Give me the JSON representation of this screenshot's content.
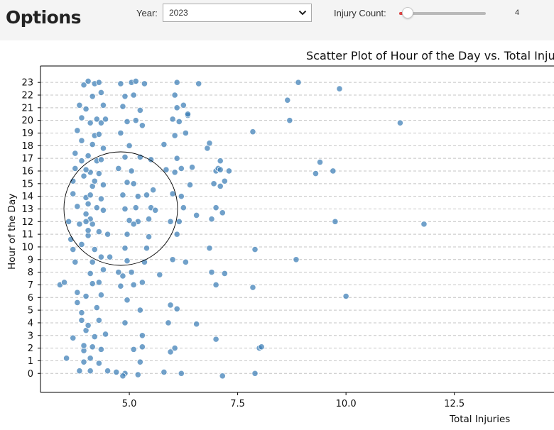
{
  "app": {
    "title": "Options"
  },
  "controls": {
    "year_label": "Year:",
    "year_value": "2023",
    "injury_label": "Injury Count:",
    "injury_value": "4",
    "injury_slider_fraction": 0.1,
    "accent_color": "#e04646"
  },
  "chart_data": {
    "type": "scatter",
    "title": "Scatter Plot of Hour of the Day vs. Total Injuries",
    "xlabel": "Total Injuries",
    "ylabel": "Hour of the Day",
    "xlim": [
      2.95,
      14.8
    ],
    "ylim": [
      -1.5,
      24.3
    ],
    "x_ticks": [
      "5.0",
      "7.5",
      "10.0",
      "12.5"
    ],
    "y_ticks": [
      "0",
      "1",
      "2",
      "3",
      "4",
      "5",
      "6",
      "7",
      "8",
      "9",
      "10",
      "11",
      "12",
      "13",
      "14",
      "15",
      "16",
      "17",
      "18",
      "19",
      "20",
      "21",
      "22",
      "23"
    ],
    "grid": "horizontal dashed",
    "point_color": "#3a7db6",
    "points": [
      [
        3.6,
        12
      ],
      [
        3.4,
        7
      ],
      [
        3.5,
        7.2
      ],
      [
        3.55,
        1.2
      ],
      [
        3.7,
        2.8
      ],
      [
        3.65,
        10.6
      ],
      [
        3.75,
        8.8
      ],
      [
        3.8,
        5.6
      ],
      [
        3.8,
        6.4
      ],
      [
        3.7,
        9.8
      ],
      [
        3.9,
        4.2
      ],
      [
        3.9,
        4.8
      ],
      [
        3.85,
        0.2
      ],
      [
        3.95,
        1.8
      ],
      [
        4.0,
        3.4
      ],
      [
        3.9,
        18.4
      ],
      [
        3.8,
        19.2
      ],
      [
        3.75,
        17.4
      ],
      [
        3.7,
        15.2
      ],
      [
        3.7,
        14.2
      ],
      [
        3.85,
        21.2
      ],
      [
        3.95,
        22.8
      ],
      [
        4.05,
        23.1
      ],
      [
        3.9,
        20.2
      ],
      [
        3.8,
        13.2
      ],
      [
        3.85,
        11.8
      ],
      [
        3.75,
        16.2
      ],
      [
        3.9,
        16.8
      ],
      [
        4.0,
        12.6
      ],
      [
        3.9,
        10.2
      ],
      [
        4.1,
        0.2
      ],
      [
        4.1,
        1.2
      ],
      [
        4.15,
        2.1
      ],
      [
        4.2,
        2.9
      ],
      [
        4.05,
        3.8
      ],
      [
        4.25,
        5.2
      ],
      [
        4.0,
        6.1
      ],
      [
        4.15,
        7.1
      ],
      [
        4.1,
        7.9
      ],
      [
        4.15,
        8.8
      ],
      [
        4.2,
        9.8
      ],
      [
        4.05,
        10.9
      ],
      [
        4.15,
        11.8
      ],
      [
        4.1,
        12.2
      ],
      [
        4.25,
        13.1
      ],
      [
        4.0,
        13.9
      ],
      [
        4.15,
        14.8
      ],
      [
        4.2,
        15.2
      ],
      [
        4.1,
        15.9
      ],
      [
        4.25,
        16.8
      ],
      [
        4.05,
        17.2
      ],
      [
        4.15,
        18.1
      ],
      [
        4.2,
        18.8
      ],
      [
        4.1,
        19.8
      ],
      [
        4.25,
        20.1
      ],
      [
        4.0,
        20.9
      ],
      [
        4.15,
        21.9
      ],
      [
        4.2,
        22.9
      ],
      [
        4.3,
        23.0
      ],
      [
        4.3,
        0.8
      ],
      [
        4.35,
        1.9
      ],
      [
        4.3,
        4.2
      ],
      [
        4.35,
        6.2
      ],
      [
        4.3,
        7.2
      ],
      [
        4.4,
        8.2
      ],
      [
        4.35,
        9.2
      ],
      [
        4.3,
        11.2
      ],
      [
        4.4,
        12.9
      ],
      [
        4.35,
        13.8
      ],
      [
        4.4,
        14.9
      ],
      [
        4.3,
        15.8
      ],
      [
        4.35,
        16.9
      ],
      [
        4.4,
        17.8
      ],
      [
        4.3,
        18.9
      ],
      [
        4.35,
        19.8
      ],
      [
        4.4,
        21.2
      ],
      [
        4.35,
        22.2
      ],
      [
        4.45,
        20.1
      ],
      [
        4.5,
        11.0
      ],
      [
        4.55,
        9.2
      ],
      [
        4.45,
        3.1
      ],
      [
        4.5,
        0.2
      ],
      [
        3.95,
        0.9
      ],
      [
        4.05,
        13.4
      ],
      [
        4.1,
        14.1
      ],
      [
        3.95,
        15.6
      ],
      [
        4.0,
        16.1
      ],
      [
        4.05,
        11.3
      ],
      [
        4.0,
        12.0
      ],
      [
        3.95,
        2.2
      ],
      [
        4.7,
        0.1
      ],
      [
        4.75,
        8.0
      ],
      [
        4.85,
        7.7
      ],
      [
        4.8,
        6.9
      ],
      [
        4.9,
        4.0
      ],
      [
        4.95,
        5.8
      ],
      [
        4.9,
        0.0
      ],
      [
        4.85,
        -0.2
      ],
      [
        4.8,
        22.9
      ],
      [
        4.9,
        21.9
      ],
      [
        4.85,
        21.1
      ],
      [
        4.95,
        19.9
      ],
      [
        4.8,
        19.0
      ],
      [
        4.9,
        17.1
      ],
      [
        4.75,
        16.2
      ],
      [
        4.95,
        15.1
      ],
      [
        4.85,
        14.1
      ],
      [
        4.9,
        13.0
      ],
      [
        5.0,
        12.1
      ],
      [
        4.95,
        11.0
      ],
      [
        4.9,
        9.9
      ],
      [
        4.95,
        8.9
      ],
      [
        5.05,
        8.0
      ],
      [
        5.1,
        7.0
      ],
      [
        5.05,
        23.0
      ],
      [
        5.1,
        22.0
      ],
      [
        5.15,
        20.0
      ],
      [
        5.0,
        18.0
      ],
      [
        5.05,
        16.0
      ],
      [
        5.1,
        15.0
      ],
      [
        5.15,
        13.1
      ],
      [
        5.2,
        12.0
      ],
      [
        5.1,
        11.8
      ],
      [
        5.2,
        14.0
      ],
      [
        5.25,
        20.8
      ],
      [
        5.3,
        19.6
      ],
      [
        5.25,
        17.1
      ],
      [
        5.3,
        3.0
      ],
      [
        5.25,
        5.0
      ],
      [
        5.3,
        7.2
      ],
      [
        5.35,
        8.8
      ],
      [
        5.4,
        9.9
      ],
      [
        5.45,
        10.8
      ],
      [
        5.4,
        14.1
      ],
      [
        5.45,
        12.2
      ],
      [
        5.5,
        13.1
      ],
      [
        5.55,
        14.5
      ],
      [
        5.6,
        12.9
      ],
      [
        5.3,
        2.1
      ],
      [
        5.2,
        -0.1
      ],
      [
        5.25,
        0.9
      ],
      [
        5.1,
        1.9
      ],
      [
        5.35,
        22.9
      ],
      [
        5.15,
        23.1
      ],
      [
        5.5,
        16.9
      ],
      [
        5.7,
        7.8
      ],
      [
        5.8,
        18.1
      ],
      [
        5.85,
        16.1
      ],
      [
        5.8,
        0.1
      ],
      [
        5.95,
        1.7
      ],
      [
        5.9,
        4.0
      ],
      [
        5.95,
        5.4
      ],
      [
        6.0,
        9.0
      ],
      [
        5.95,
        12.0
      ],
      [
        6.0,
        14.2
      ],
      [
        6.05,
        15.9
      ],
      [
        6.1,
        17.0
      ],
      [
        6.05,
        18.8
      ],
      [
        6.0,
        20.1
      ],
      [
        6.1,
        21.0
      ],
      [
        6.05,
        22.0
      ],
      [
        6.1,
        23.0
      ],
      [
        6.15,
        19.9
      ],
      [
        6.2,
        16.2
      ],
      [
        6.25,
        13.1
      ],
      [
        6.3,
        8.8
      ],
      [
        6.35,
        20.4
      ],
      [
        6.4,
        14.9
      ],
      [
        6.45,
        16.3
      ],
      [
        6.55,
        3.9
      ],
      [
        6.6,
        22.9
      ],
      [
        6.1,
        11.0
      ],
      [
        6.15,
        12.0
      ],
      [
        6.05,
        2.0
      ],
      [
        6.1,
        5.1
      ],
      [
        6.2,
        0.0
      ],
      [
        6.3,
        19.0
      ],
      [
        6.2,
        14.0
      ],
      [
        6.25,
        21.2
      ],
      [
        6.35,
        20.5
      ],
      [
        6.8,
        17.8
      ],
      [
        6.85,
        18.2
      ],
      [
        6.9,
        12.2
      ],
      [
        6.95,
        15.0
      ],
      [
        7.0,
        16.0
      ],
      [
        7.05,
        16.2
      ],
      [
        7.1,
        16.1
      ],
      [
        6.9,
        8.0
      ],
      [
        7.0,
        7.0
      ],
      [
        7.15,
        12.7
      ],
      [
        6.85,
        9.9
      ],
      [
        7.0,
        2.7
      ],
      [
        7.1,
        16.8
      ],
      [
        7.2,
        15.2
      ],
      [
        7.15,
        -0.2
      ],
      [
        7.2,
        7.9
      ],
      [
        7.1,
        14.8
      ],
      [
        7.3,
        16.0
      ],
      [
        7.85,
        19.1
      ],
      [
        7.9,
        9.8
      ],
      [
        7.85,
        6.8
      ],
      [
        7.9,
        0.0
      ],
      [
        8.0,
        2.0
      ],
      [
        8.05,
        2.1
      ],
      [
        8.65,
        21.6
      ],
      [
        8.7,
        20.0
      ],
      [
        8.85,
        9.0
      ],
      [
        8.9,
        23.0
      ],
      [
        9.3,
        15.8
      ],
      [
        9.4,
        16.7
      ],
      [
        9.7,
        16.0
      ],
      [
        9.75,
        12.0
      ],
      [
        9.85,
        22.5
      ],
      [
        10.0,
        6.1
      ],
      [
        11.25,
        19.8
      ],
      [
        11.8,
        11.8
      ],
      [
        6.55,
        12.5
      ],
      [
        7.0,
        13.1
      ]
    ]
  }
}
